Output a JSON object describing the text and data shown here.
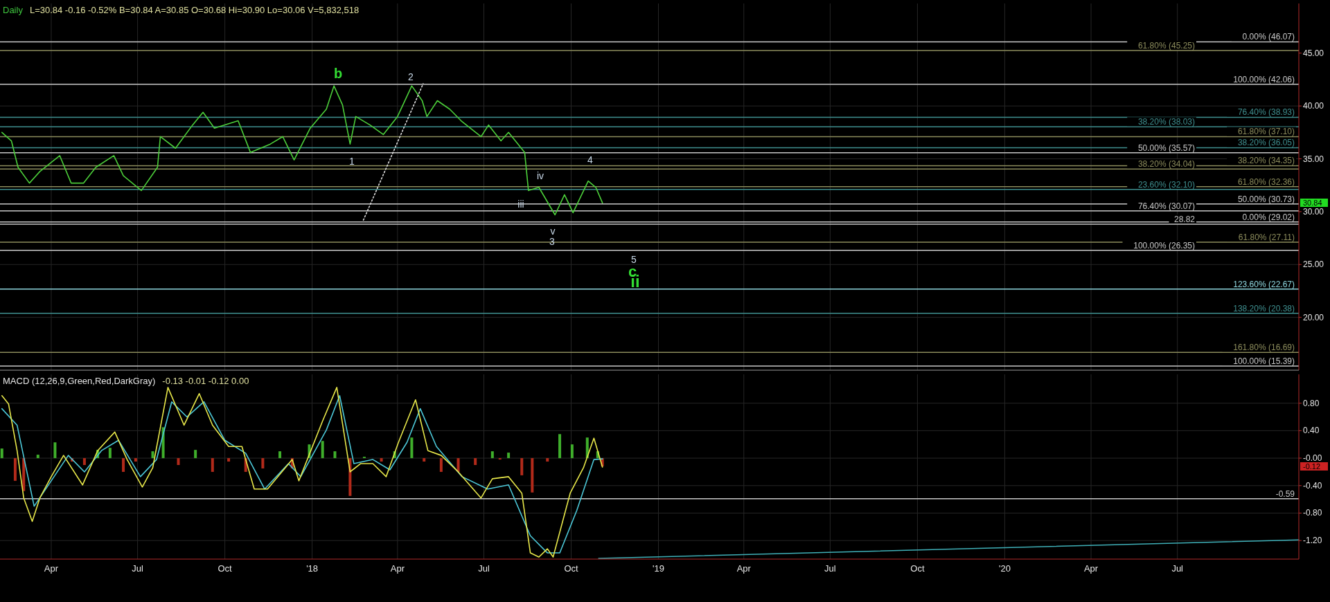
{
  "chart_data": [
    {
      "type": "line",
      "title": "Daily",
      "subtitle": "L=30.84 -0.16 -0.52% B=30.84 A=30.85 O=30.68 Hi=30.90 Lo=30.06 V=5,832,518",
      "xlim": [
        "2017-02-06",
        "2020-11-06"
      ],
      "ylim": [
        15.0,
        49.7
      ],
      "xticks": [
        {
          "value": "2017-04-01",
          "label": null
        },
        {
          "value": "2017-07-01",
          "label": null
        },
        {
          "value": "2017-10-01",
          "label": null
        },
        {
          "value": "2018-01-01",
          "label": null
        },
        {
          "value": "2018-04-01",
          "label": null
        },
        {
          "value": "2018-07-01",
          "label": null
        },
        {
          "value": "2018-10-01",
          "label": null
        },
        {
          "value": "2019-01-01",
          "label": null
        },
        {
          "value": "2019-04-01",
          "label": null
        },
        {
          "value": "2019-07-01",
          "label": null
        },
        {
          "value": "2019-10-01",
          "label": null
        },
        {
          "value": "2020-01-01",
          "label": null
        },
        {
          "value": "2020-04-01",
          "label": null
        },
        {
          "value": "2020-07-01",
          "label": null
        }
      ],
      "yticks": [
        {
          "value": 20,
          "label": "20.00"
        },
        {
          "value": 25,
          "label": "25.00"
        },
        {
          "value": 30,
          "label": "30.00"
        },
        {
          "value": 35,
          "label": "35.00"
        },
        {
          "value": 40,
          "label": "40.00"
        },
        {
          "value": 45,
          "label": "45.00"
        }
      ],
      "grid": true,
      "tick_labels": "y",
      "series": [
        {
          "color": "#4ccf3a",
          "x": [
            "2017-02-08",
            "2017-02-18",
            "2017-02-25",
            "2017-03-09",
            "2017-03-20",
            "2017-04-10",
            "2017-04-22",
            "2017-05-05",
            "2017-05-18",
            "2017-06-06",
            "2017-06-16",
            "2017-07-05",
            "2017-07-22",
            "2017-07-25",
            "2017-08-10",
            "2017-08-28",
            "2017-09-08",
            "2017-09-20",
            "2017-10-15",
            "2017-10-28",
            "2017-11-18",
            "2017-12-01",
            "2017-12-13",
            "2017-12-30",
            "2018-01-16",
            "2018-01-24",
            "2018-02-02",
            "2018-02-10",
            "2018-02-16",
            "2018-03-03",
            "2018-03-17",
            "2018-04-01",
            "2018-04-16",
            "2018-04-27",
            "2018-05-02",
            "2018-05-13",
            "2018-05-26",
            "2018-06-07",
            "2018-06-28",
            "2018-07-06",
            "2018-07-19",
            "2018-07-27",
            "2018-08-13",
            "2018-08-17",
            "2018-08-28",
            "2018-09-14",
            "2018-09-24",
            "2018-10-03",
            "2018-10-19",
            "2018-10-27",
            "2018-11-03"
          ],
          "values": [
            37.5,
            36.7,
            34.2,
            32.7,
            33.8,
            35.3,
            32.7,
            32.7,
            34.2,
            35.3,
            33.4,
            32.0,
            34.2,
            37.1,
            36.0,
            38.2,
            39.4,
            37.9,
            38.6,
            35.6,
            36.4,
            37.1,
            34.9,
            37.9,
            39.7,
            41.9,
            40.1,
            36.4,
            39.0,
            38.2,
            37.3,
            39.0,
            41.9,
            40.5,
            39.0,
            40.5,
            39.7,
            38.6,
            37.1,
            38.2,
            36.7,
            37.5,
            35.6,
            32.0,
            32.3,
            29.7,
            31.6,
            29.9,
            32.9,
            32.3,
            30.84
          ]
        },
        {
          "type": "line",
          "color": "#dddddd",
          "line_style": "dotted",
          "x": [
            "2018-02-24",
            "2018-04-28"
          ],
          "values": [
            29.2,
            42.1
          ]
        }
      ],
      "ref_lines": [
        {
          "axis": "y",
          "value": 46.07,
          "label": "0.00% (46.07)",
          "color": "#c8c8c8"
        },
        {
          "axis": "y",
          "value": 45.25,
          "label": "61.80% (45.25)",
          "color": "#8c8c5c"
        },
        {
          "axis": "y",
          "value": 42.06,
          "label": "100.00% (42.06)",
          "color": "#c8c8c8"
        },
        {
          "axis": "y",
          "value": 38.93,
          "label": "76.40% (38.93)",
          "color": "#3f8f8f"
        },
        {
          "axis": "y",
          "value": 38.03,
          "label": "38.20% (38.03)",
          "color": "#3f8f8f"
        },
        {
          "axis": "y",
          "value": 37.1,
          "label": "61.80% (37.10)",
          "color": "#8c8c5c"
        },
        {
          "axis": "y",
          "value": 36.05,
          "label": "38.20% (36.05)",
          "color": "#3f8f8f"
        },
        {
          "axis": "y",
          "value": 35.57,
          "label": "50.00% (35.57)",
          "color": "#c8c8c8"
        },
        {
          "axis": "y",
          "value": 34.35,
          "label": "38.20% (34.35)",
          "color": "#8c8c5c"
        },
        {
          "axis": "y",
          "value": 34.04,
          "label": "38.20% (34.04)",
          "color": "#8c8c5c"
        },
        {
          "axis": "y",
          "value": 32.36,
          "label": "61.80% (32.36)",
          "color": "#8c8c5c"
        },
        {
          "axis": "y",
          "value": 32.1,
          "label": "23.60% (32.10)",
          "color": "#3f8f8f"
        },
        {
          "axis": "y",
          "value": 30.73,
          "label": "50.00% (30.73)",
          "color": "#c8c8c8"
        },
        {
          "axis": "y",
          "value": 30.07,
          "label": "76.40% (30.07)",
          "color": "#c8c8c8"
        },
        {
          "axis": "y",
          "value": 29.02,
          "label": "0.00% (29.02)",
          "color": "#c8c8c8"
        },
        {
          "axis": "y",
          "value": 28.82,
          "label": "28.82",
          "color": "#c8c8c8"
        },
        {
          "axis": "y",
          "value": 27.11,
          "label": "61.80% (27.11)",
          "color": "#8c8c5c"
        },
        {
          "axis": "y",
          "value": 26.35,
          "label": "100.00% (26.35)",
          "color": "#c8c8c8"
        },
        {
          "axis": "y",
          "value": 22.67,
          "label": "123.60% (22.67)",
          "color": "#8fd8e0"
        },
        {
          "axis": "y",
          "value": 20.38,
          "label": "138.20% (20.38)",
          "color": "#3f8f8f"
        },
        {
          "axis": "y",
          "value": 16.69,
          "label": "161.80% (16.69)",
          "color": "#8c8c5c"
        },
        {
          "axis": "y",
          "value": 15.39,
          "label": "100.00% (15.39)",
          "color": "#c8c8c8"
        }
      ],
      "annotations": [
        "b",
        "2",
        "1",
        "iii",
        "iv",
        "v",
        "3",
        "4",
        "5",
        "c",
        "ii",
        "30.84"
      ]
    },
    {
      "type": "line",
      "title": "MACD (12,26,9,Green,Red,DarkGray)",
      "subtitle": "-0.13 -0.01 -0.12 0.00",
      "xlim": [
        "2017-02-06",
        "2020-11-06"
      ],
      "ylim": [
        -1.47,
        1.22
      ],
      "xticks": [
        {
          "value": "2017-04-01",
          "label": "Apr"
        },
        {
          "value": "2017-07-01",
          "label": "Jul"
        },
        {
          "value": "2017-10-01",
          "label": "Oct"
        },
        {
          "value": "2018-01-01",
          "label": "'18"
        },
        {
          "value": "2018-04-01",
          "label": "Apr"
        },
        {
          "value": "2018-07-01",
          "label": "Jul"
        },
        {
          "value": "2018-10-01",
          "label": "Oct"
        },
        {
          "value": "2019-01-01",
          "label": "'19"
        },
        {
          "value": "2019-04-01",
          "label": "Apr"
        },
        {
          "value": "2019-07-01",
          "label": "Jul"
        },
        {
          "value": "2019-10-01",
          "label": "Oct"
        },
        {
          "value": "2020-01-01",
          "label": "'20"
        },
        {
          "value": "2020-04-01",
          "label": "Apr"
        },
        {
          "value": "2020-07-01",
          "label": "Jul"
        }
      ],
      "yticks": [
        {
          "value": 0.8,
          "label": "0.80"
        },
        {
          "value": 0.4,
          "label": "0.40"
        },
        {
          "value": 0,
          "label": "-0.00"
        },
        {
          "value": -0.4,
          "label": "-0.40"
        },
        {
          "value": -0.8,
          "label": "-0.80"
        },
        {
          "value": -1.2,
          "label": "-1.20"
        }
      ],
      "grid": true,
      "series": [
        {
          "type": "bar",
          "x": [
            "2017-02-08",
            "2017-02-22",
            "2017-03-03",
            "2017-03-18",
            "2017-04-05",
            "2017-04-23",
            "2017-05-06",
            "2017-05-20",
            "2017-06-02",
            "2017-06-16",
            "2017-06-29",
            "2017-07-17",
            "2017-07-28",
            "2017-08-13",
            "2017-08-31",
            "2017-09-18",
            "2017-10-05",
            "2017-10-23",
            "2017-11-10",
            "2017-11-28",
            "2017-12-11",
            "2017-12-29",
            "2018-01-12",
            "2018-01-25",
            "2018-02-10",
            "2018-02-25",
            "2018-03-15",
            "2018-03-29",
            "2018-04-16",
            "2018-04-29",
            "2018-05-17",
            "2018-06-04",
            "2018-06-22",
            "2018-07-10",
            "2018-07-18",
            "2018-07-27",
            "2018-08-10",
            "2018-08-21",
            "2018-09-06",
            "2018-09-19",
            "2018-10-02",
            "2018-10-18",
            "2018-10-29",
            "2018-11-03"
          ],
          "values": [
            0.14,
            -0.33,
            -0.48,
            0.05,
            0.23,
            -0.05,
            -0.1,
            0.12,
            0.15,
            -0.2,
            -0.05,
            0.1,
            0.45,
            -0.1,
            0.12,
            -0.2,
            -0.05,
            -0.2,
            -0.15,
            0.1,
            -0.15,
            0.2,
            0.25,
            0.1,
            -0.55,
            0.02,
            -0.05,
            0.1,
            0.3,
            -0.05,
            -0.2,
            -0.2,
            -0.1,
            0.1,
            -0.02,
            0.08,
            -0.25,
            -0.5,
            -0.05,
            0.35,
            0.2,
            0.3,
            0.1,
            -0.12
          ],
          "colors": [
            "#3fae2b",
            "#b22a1a",
            "#b22a1a",
            "#3fae2b",
            "#3fae2b",
            "#b22a1a",
            "#b22a1a",
            "#3fae2b",
            "#3fae2b",
            "#b22a1a",
            "#b22a1a",
            "#3fae2b",
            "#3fae2b",
            "#b22a1a",
            "#3fae2b",
            "#b22a1a",
            "#b22a1a",
            "#b22a1a",
            "#b22a1a",
            "#3fae2b",
            "#b22a1a",
            "#3fae2b",
            "#3fae2b",
            "#3fae2b",
            "#b22a1a",
            "#3fae2b",
            "#b22a1a",
            "#3fae2b",
            "#3fae2b",
            "#b22a1a",
            "#b22a1a",
            "#b22a1a",
            "#b22a1a",
            "#3fae2b",
            "#b22a1a",
            "#3fae2b",
            "#b22a1a",
            "#b22a1a",
            "#b22a1a",
            "#3fae2b",
            "#3fae2b",
            "#3fae2b",
            "#3fae2b",
            "#b22a1a"
          ]
        },
        {
          "color": "#4cc8d8",
          "x": [
            "2017-02-08",
            "2017-02-24",
            "2017-03-14",
            "2017-04-01",
            "2017-04-19",
            "2017-05-06",
            "2017-05-24",
            "2017-06-11",
            "2017-07-04",
            "2017-07-21",
            "2017-08-06",
            "2017-08-22",
            "2017-09-09",
            "2017-10-01",
            "2017-10-23",
            "2017-11-12",
            "2017-12-07",
            "2017-12-20",
            "2018-01-16",
            "2018-01-30",
            "2018-02-14",
            "2018-03-06",
            "2018-03-24",
            "2018-04-11",
            "2018-04-25",
            "2018-05-12",
            "2018-06-08",
            "2018-07-05",
            "2018-07-27",
            "2018-08-19",
            "2018-09-06",
            "2018-09-19",
            "2018-10-07",
            "2018-10-25",
            "2018-11-03"
          ],
          "values": [
            0.72,
            0.48,
            -0.7,
            -0.33,
            0.04,
            -0.2,
            0.11,
            0.26,
            -0.27,
            -0.02,
            0.82,
            0.6,
            0.82,
            0.26,
            0.07,
            -0.45,
            -0.08,
            -0.27,
            0.41,
            0.91,
            -0.08,
            -0.02,
            -0.17,
            0.23,
            0.72,
            0.17,
            -0.27,
            -0.45,
            -0.39,
            -1.13,
            -1.38,
            -1.38,
            -0.76,
            -0.02,
            -0.01
          ]
        },
        {
          "color": "#e8e84a",
          "x": [
            "2017-02-08",
            "2017-02-15",
            "2017-02-24",
            "2017-03-03",
            "2017-03-12",
            "2017-03-20",
            "2017-04-01",
            "2017-04-14",
            "2017-05-04",
            "2017-05-20",
            "2017-06-07",
            "2017-06-20",
            "2017-07-06",
            "2017-07-17",
            "2017-08-02",
            "2017-08-19",
            "2017-09-04",
            "2017-09-18",
            "2017-10-05",
            "2017-10-19",
            "2017-11-01",
            "2017-11-15",
            "2017-12-11",
            "2017-12-18",
            "2018-01-12",
            "2018-01-27",
            "2018-02-10",
            "2018-02-21",
            "2018-03-06",
            "2018-03-20",
            "2018-04-02",
            "2018-04-20",
            "2018-05-03",
            "2018-05-17",
            "2018-06-04",
            "2018-06-28",
            "2018-07-10",
            "2018-07-27",
            "2018-08-10",
            "2018-08-19",
            "2018-08-28",
            "2018-09-06",
            "2018-09-12",
            "2018-09-30",
            "2018-10-14",
            "2018-10-25",
            "2018-11-03"
          ],
          "values": [
            0.91,
            0.79,
            0.11,
            -0.58,
            -0.92,
            -0.58,
            -0.27,
            0.04,
            -0.39,
            0.11,
            0.38,
            -0.02,
            -0.42,
            -0.14,
            1.03,
            0.48,
            0.94,
            0.48,
            0.17,
            0.17,
            -0.45,
            -0.45,
            -0.02,
            -0.33,
            0.54,
            1.03,
            -0.2,
            -0.08,
            -0.08,
            -0.27,
            0.23,
            0.85,
            0.11,
            0.04,
            -0.2,
            -0.58,
            -0.3,
            -0.27,
            -0.51,
            -1.38,
            -1.44,
            -1.32,
            -1.44,
            -0.51,
            -0.14,
            0.29,
            -0.13
          ]
        },
        {
          "type": "line",
          "color": "#3fb0b8",
          "x": [
            "2018-10-30",
            "2020-11-06"
          ],
          "values": [
            -1.46,
            -1.19
          ]
        }
      ],
      "ref_lines": [
        {
          "axis": "y",
          "value": -0.59,
          "label": "-0.59",
          "color": "#c8c8c8"
        }
      ],
      "annotations": [
        "-0.12"
      ]
    }
  ]
}
